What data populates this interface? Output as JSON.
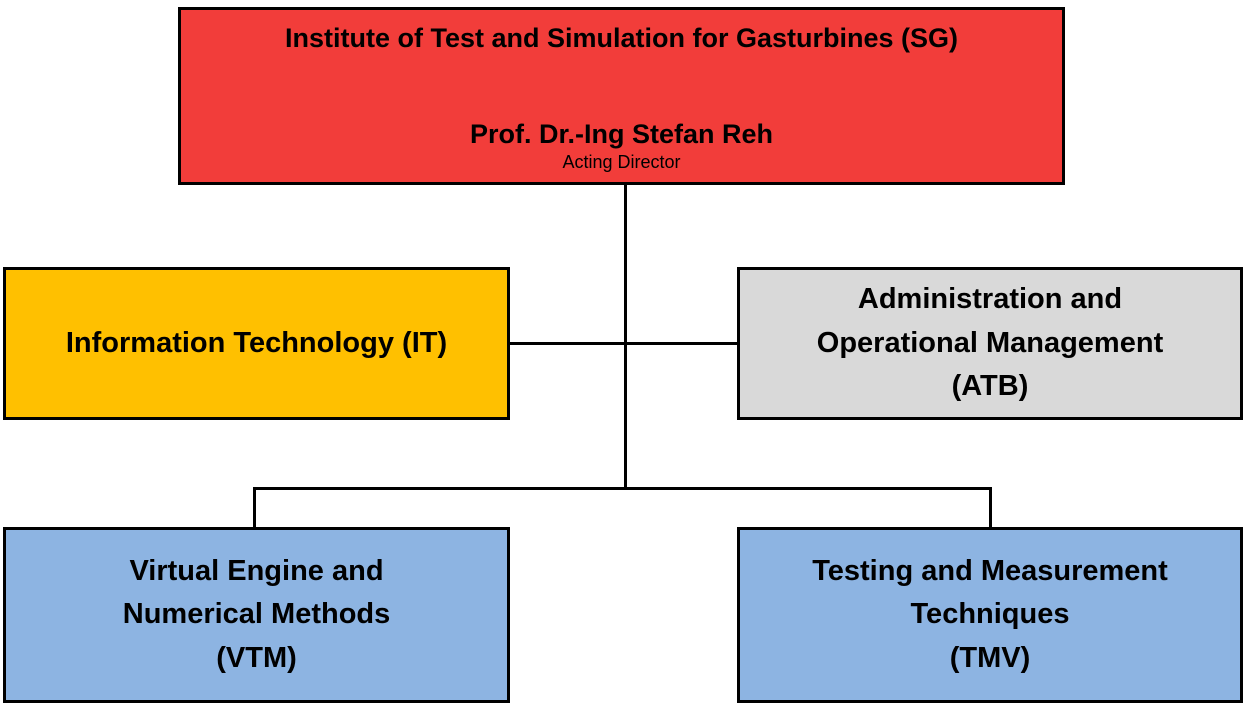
{
  "org": {
    "root": {
      "title": "Institute of Test and Simulation for Gasturbines (SG)",
      "person": "Prof. Dr.-Ing Stefan Reh",
      "role": "Acting Director",
      "color": "#F23D3A"
    },
    "children": [
      {
        "label": "Information Technology (IT)",
        "color": "#FFC000"
      },
      {
        "label": "Administration and\nOperational Management\n(ATB)",
        "color": "#D9D9D9"
      },
      {
        "label": "Virtual Engine and\nNumerical Methods\n(VTM)",
        "color": "#8DB4E2"
      },
      {
        "label": "Testing and Measurement\nTechniques\n(TMV)",
        "color": "#8DB4E2"
      }
    ],
    "line_color": "#000000",
    "border_color": "#000000"
  }
}
